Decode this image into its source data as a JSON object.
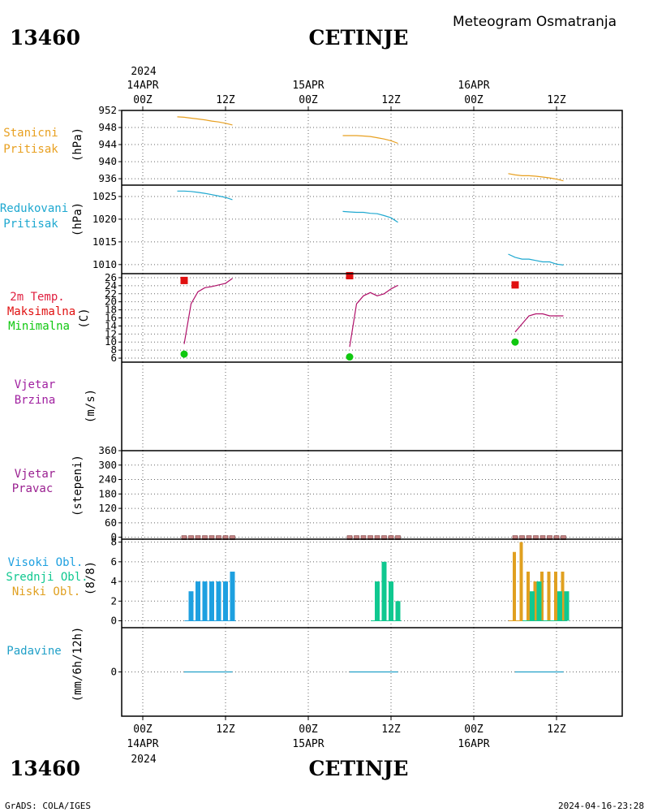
{
  "header": {
    "station_id": "13460",
    "station_name": "CETINJE",
    "subtitle": "Meteogram Osmatranja",
    "footer_left": "GrADS: COLA/IGES",
    "footer_right": "2024-04-16-23:28"
  },
  "time_axis": {
    "year": "2024",
    "top_labels": [
      {
        "date": "14APR",
        "hour": "00Z"
      },
      {
        "date": "",
        "hour": "12Z"
      },
      {
        "date": "15APR",
        "hour": "00Z"
      },
      {
        "date": "",
        "hour": "12Z"
      },
      {
        "date": "16APR",
        "hour": "00Z"
      },
      {
        "date": "",
        "hour": "12Z"
      }
    ]
  },
  "colors": {
    "stanicni": "#e8a020",
    "redukovani": "#1ea8d0",
    "temp": "#b0106a",
    "maks": "#e01010",
    "min": "#10c810",
    "wind": "#a020a0",
    "pravac_label": "#9a2090",
    "visoki": "#1ea0e0",
    "srednji": "#10c890",
    "niski": "#e0a020",
    "padavine": "#20a0c8",
    "calm_marker": "#c08080"
  },
  "panels": {
    "stanicni": {
      "label1": "Stanicni",
      "label2": "Pritisak",
      "unit": "(hPa)"
    },
    "redukovani": {
      "label1": "Redukovani",
      "label2": "Pritisak",
      "unit": "(hPa)"
    },
    "temp": {
      "label1": "2m Temp.",
      "label2": "Maksimalna",
      "label3": "Minimalna",
      "unit": "(C)"
    },
    "wind_speed": {
      "label1": "Vjetar",
      "label2": "Brzina",
      "unit": "(m/s)"
    },
    "wind_dir": {
      "label1": "Vjetar",
      "label2": "Pravac",
      "unit": "(stepeni)"
    },
    "clouds": {
      "label1": "Visoki Obl.",
      "label2": "Srednji Obl.",
      "label3": "Niski Obl.",
      "unit": "(8/8)"
    },
    "precip": {
      "label1": "Padavine",
      "unit": "(mm/6h/12h)"
    }
  },
  "chart_data": [
    {
      "type": "line",
      "name": "stanicni",
      "yticks": [
        936,
        940,
        944,
        948,
        952
      ],
      "ylim": [
        934.5,
        952
      ],
      "series": [
        {
          "x": [
            5,
            6,
            7,
            8,
            9,
            10,
            11,
            12,
            13
          ],
          "y": [
            950.5,
            950.4,
            950.2,
            950.0,
            949.8,
            949.5,
            949.3,
            949.0,
            948.6
          ]
        },
        {
          "x": [
            29,
            30,
            31,
            32,
            33,
            34,
            35,
            36,
            37
          ],
          "y": [
            946.1,
            946.1,
            946.1,
            946.0,
            945.9,
            945.6,
            945.3,
            944.9,
            944.3
          ]
        },
        {
          "x": [
            53,
            54,
            55,
            56,
            57,
            58,
            59,
            60,
            61
          ],
          "y": [
            937.2,
            936.9,
            936.7,
            936.7,
            936.6,
            936.4,
            936.2,
            935.9,
            935.5
          ]
        }
      ]
    },
    {
      "type": "line",
      "name": "redukovani",
      "yticks": [
        1010,
        1015,
        1020,
        1025
      ],
      "ylim": [
        1008,
        1027.5
      ],
      "series": [
        {
          "x": [
            5,
            6,
            7,
            8,
            9,
            10,
            11,
            12,
            13
          ],
          "y": [
            1026.2,
            1026.2,
            1026.1,
            1025.9,
            1025.7,
            1025.4,
            1025.1,
            1024.8,
            1024.3
          ]
        },
        {
          "x": [
            29,
            30,
            31,
            32,
            33,
            34,
            35,
            36,
            37
          ],
          "y": [
            1021.7,
            1021.6,
            1021.5,
            1021.5,
            1021.3,
            1021.2,
            1020.8,
            1020.3,
            1019.3
          ]
        },
        {
          "x": [
            53,
            54,
            55,
            56,
            57,
            58,
            59,
            60,
            61
          ],
          "y": [
            1012.3,
            1011.6,
            1011.2,
            1011.2,
            1010.9,
            1010.6,
            1010.6,
            1010.1,
            1009.9
          ]
        }
      ]
    },
    {
      "type": "line",
      "name": "temperatura",
      "yticks": [
        6,
        8,
        10,
        12,
        14,
        16,
        18,
        20,
        22,
        24,
        26
      ],
      "ylim": [
        5,
        27
      ],
      "series": [
        {
          "x": [
            6,
            7,
            8,
            9,
            10,
            11,
            12,
            13
          ],
          "y": [
            9.5,
            19.5,
            22.5,
            23.5,
            23.8,
            24.2,
            24.6,
            25.8
          ]
        },
        {
          "x": [
            30,
            31,
            32,
            33,
            34,
            35,
            36,
            37
          ],
          "y": [
            8.8,
            19.5,
            21.5,
            22.3,
            21.5,
            22,
            23.2,
            24.1
          ]
        },
        {
          "x": [
            54,
            55,
            56,
            57,
            58,
            59,
            60,
            61
          ],
          "y": [
            12.5,
            14.5,
            16.5,
            17,
            17,
            16.5,
            16.5,
            16.5
          ]
        }
      ],
      "maksimalna": {
        "x": [
          6,
          30,
          54
        ],
        "y": [
          25.3,
          26.5,
          24.2
        ]
      },
      "minimalna": {
        "x": [
          6,
          30,
          54
        ],
        "y": [
          7,
          6.3,
          10
        ]
      }
    },
    {
      "type": "line",
      "name": "vjetar_brzina",
      "series": []
    },
    {
      "type": "scatter",
      "name": "vjetar_pravac",
      "yticks": [
        0,
        60,
        120,
        180,
        240,
        300,
        360
      ],
      "ylim": [
        -8,
        360
      ],
      "series": [
        {
          "x": [
            6,
            7,
            8,
            9,
            10,
            11,
            12,
            13
          ],
          "y": [
            0,
            0,
            0,
            0,
            0,
            0,
            0,
            0
          ]
        },
        {
          "x": [
            30,
            31,
            32,
            33,
            34,
            35,
            36,
            37
          ],
          "y": [
            0,
            0,
            0,
            0,
            0,
            0,
            0,
            0
          ]
        },
        {
          "x": [
            54,
            55,
            56,
            57,
            58,
            59,
            60,
            61
          ],
          "y": [
            0,
            0,
            0,
            0,
            0,
            0,
            0,
            0
          ]
        }
      ]
    },
    {
      "type": "bar",
      "name": "oblacnost",
      "yticks": [
        0,
        2,
        4,
        6,
        8
      ],
      "ylim": [
        -0.7,
        8.3
      ],
      "series": [
        {
          "color_key": "visoki",
          "x": [
            7,
            8,
            9,
            10,
            11,
            12,
            13
          ],
          "y": [
            3,
            4,
            4,
            4,
            4,
            4,
            5
          ]
        },
        {
          "color_key": "srednji",
          "x": [
            34,
            35,
            36,
            37
          ],
          "y": [
            4,
            6,
            4,
            2
          ]
        },
        {
          "color_key": "niski",
          "x": [
            54,
            55,
            56,
            57,
            58,
            59,
            60,
            61
          ],
          "y": [
            7,
            8,
            5,
            4,
            5,
            5,
            5,
            5
          ]
        },
        {
          "color_key": "srednji",
          "x": [
            56,
            57,
            60,
            61
          ],
          "y": [
            3,
            4,
            3,
            3
          ]
        }
      ]
    },
    {
      "type": "line",
      "name": "padavine",
      "yticks": [
        0
      ],
      "ylim": [
        -5,
        5
      ],
      "series": [
        {
          "x": [
            6,
            7,
            8,
            9,
            10,
            11,
            12,
            13
          ],
          "y": [
            0,
            0,
            0,
            0,
            0,
            0,
            0,
            0
          ]
        },
        {
          "x": [
            30,
            31,
            32,
            33,
            34,
            35,
            36,
            37
          ],
          "y": [
            0,
            0,
            0,
            0,
            0,
            0,
            0,
            0
          ]
        },
        {
          "x": [
            54,
            55,
            56,
            57,
            58,
            59,
            60,
            61
          ],
          "y": [
            0,
            0,
            0,
            0,
            0,
            0,
            0,
            0
          ]
        }
      ]
    }
  ]
}
